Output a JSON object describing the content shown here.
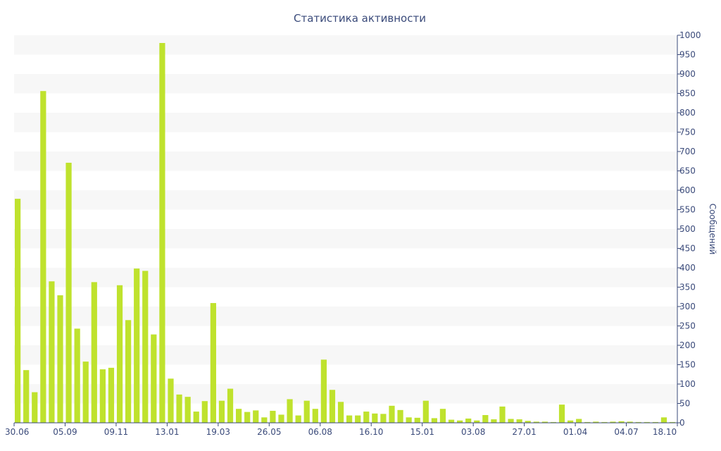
{
  "chart_data": {
    "type": "bar",
    "title": "Статистика активности",
    "ylabel": "Сообщений",
    "ylim": [
      0,
      1000
    ],
    "y_ticks": [
      0,
      50,
      100,
      150,
      200,
      250,
      300,
      350,
      400,
      450,
      500,
      550,
      600,
      650,
      700,
      750,
      800,
      850,
      900,
      950,
      1000
    ],
    "y_axis_side": "right",
    "x_tick_labels": [
      "30.06",
      "05.09",
      "09.11",
      "13.01",
      "19.03",
      "26.05",
      "06.08",
      "16.10",
      "15.01",
      "03.08",
      "27.01",
      "01.04",
      "04.07",
      "18.10"
    ],
    "x_tick_bar_index": [
      0,
      6,
      12,
      18,
      24,
      30,
      36,
      42,
      48,
      54,
      60,
      66,
      72,
      78
    ],
    "values": [
      578,
      136,
      79,
      856,
      365,
      329,
      671,
      243,
      158,
      363,
      138,
      142,
      355,
      265,
      398,
      392,
      228,
      980,
      114,
      73,
      67,
      29,
      56,
      309,
      57,
      88,
      36,
      28,
      32,
      14,
      31,
      21,
      61,
      19,
      57,
      36,
      163,
      85,
      54,
      19,
      19,
      29,
      24,
      23,
      44,
      33,
      14,
      13,
      57,
      12,
      36,
      8,
      6,
      11,
      6,
      20,
      9,
      42,
      10,
      9,
      5,
      3,
      3,
      2,
      47,
      6,
      10,
      2,
      3,
      2,
      3,
      4,
      3,
      2,
      2,
      2,
      14,
      2
    ],
    "bar_color": "#bfe22d",
    "band_color": "#f7f7f7",
    "axis_color": "#3a4a7a",
    "grid": "alternating horizontal bands",
    "legend": "none"
  }
}
